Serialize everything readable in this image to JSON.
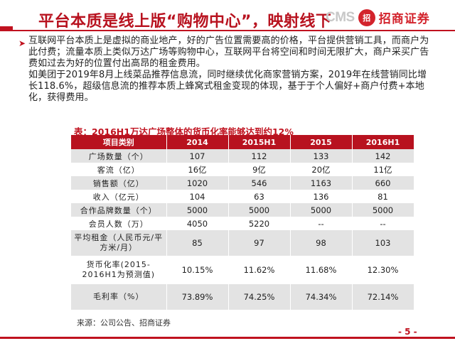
{
  "header": {
    "title": "平台本质是线上版“购物中心”，映射线下",
    "logo_cms": "CMS",
    "logo_mark": "招",
    "logo_text": "招商证券"
  },
  "body": {
    "para1": "互联网平台本质上是虚拟的商业地产，好的广告位置需要高的价格，平台提供营销工具，而商户为此付费；流量本质上类似万达广场等购物中心，互联网平台将空间和时间无限扩大，商户采买广告费如过去为好的位置付出高昂的租金费用。",
    "para2": "如美团于2019年8月上线菜品推荐信息流，同时继续优化商家营销方案，2019年在线营销同比增长118.6%，超级信息流的推荐本质上蜂窝式租金变现的体现，基于于个人偏好+商户付费+本地化，获得费用。"
  },
  "table": {
    "caption": "表：2016H1万达广场整体的货币化率能够达到约12%",
    "headers": [
      "项目类别",
      "2014",
      "2015H1",
      "2015",
      "2016H1"
    ],
    "rows": [
      {
        "label": "广场数量（个）",
        "values": [
          "107",
          "112",
          "133",
          "142"
        ]
      },
      {
        "label": "客流（亿）",
        "values": [
          "16亿",
          "9亿",
          "20亿",
          "11亿"
        ]
      },
      {
        "label": "销售额（亿）",
        "values": [
          "1020",
          "546",
          "1163",
          "660"
        ]
      },
      {
        "label": "收入（亿元）",
        "values": [
          "104",
          "63",
          "136",
          "81"
        ]
      },
      {
        "label": "合作品牌数量（个）",
        "values": [
          "5000",
          "5000",
          "5000",
          "5000"
        ]
      },
      {
        "label": "会员人数（万）",
        "values": [
          "4050",
          "5220",
          "--",
          "--"
        ]
      },
      {
        "label": "平均租金（人民币元/平方米/月）",
        "values": [
          "85",
          "97",
          "98",
          "103"
        ]
      },
      {
        "label": "货币化率(2015-2016H1为预测值)",
        "values": [
          "10.15%",
          "11.62%",
          "11.68%",
          "12.30%"
        ]
      },
      {
        "label": "毛利率（%）",
        "values": [
          "73.89%",
          "74.25%",
          "74.34%",
          "72.14%"
        ]
      }
    ]
  },
  "footer": {
    "source": "来源：公司公告、招商证券",
    "page": "- 5 -"
  },
  "colors": {
    "brand_red": "#b8121f",
    "row_grey": "#e3e3e3"
  }
}
